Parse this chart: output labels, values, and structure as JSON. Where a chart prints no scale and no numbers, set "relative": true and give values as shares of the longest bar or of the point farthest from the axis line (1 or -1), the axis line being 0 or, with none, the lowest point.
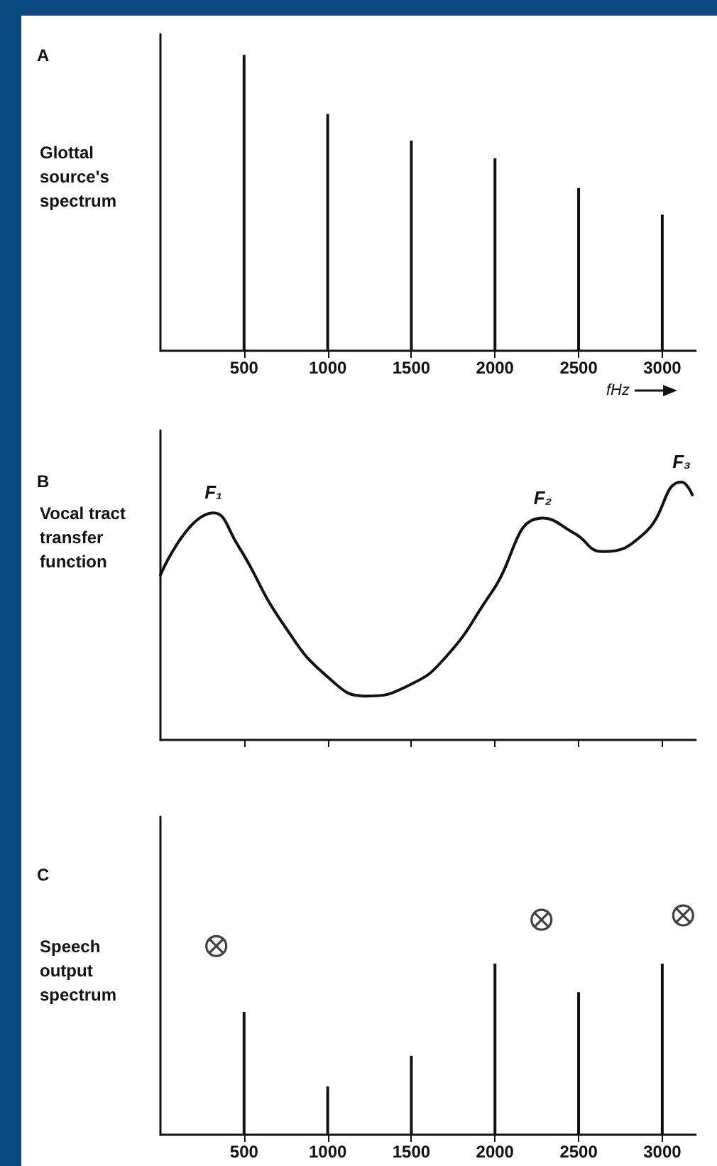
{
  "chart_data": [
    {
      "type": "bar",
      "annotations": [
        "A"
      ],
      "ylabel": "Glottal source's spectrum",
      "xlabel": "fHz",
      "relative": true,
      "color": "#111111",
      "xlim": [
        0,
        3200
      ],
      "xticks": [
        500,
        1000,
        1500,
        2000,
        2500,
        3000
      ],
      "tick_labels": "x",
      "x": [
        500,
        1000,
        1500,
        2000,
        2500,
        3000
      ],
      "values": [
        1,
        0.8,
        0.71,
        0.65,
        0.55,
        0.46
      ]
    },
    {
      "type": "line",
      "ylabel": "Vocal tract transfer function",
      "relative": true,
      "color": "#111111",
      "marker": "none",
      "line_style": "solid",
      "xlim": [
        0,
        3200
      ],
      "xticks": [
        {
          "value": 500,
          "label": null
        },
        {
          "value": 1000,
          "label": null
        },
        {
          "value": 1500,
          "label": null
        },
        {
          "value": 2000,
          "label": null
        },
        {
          "value": 2500,
          "label": null
        },
        {
          "value": 3000,
          "label": null
        }
      ],
      "tick_labels": false,
      "x": [
        0,
        317,
        458,
        733,
        1007,
        1231,
        1480,
        1704,
        1978,
        2286,
        2477,
        2643,
        2892,
        3116,
        3180
      ],
      "values": [
        0.64,
        0.88,
        0.76,
        0.45,
        0.24,
        0.17,
        0.21,
        0.32,
        0.57,
        0.86,
        0.8,
        0.73,
        0.8,
        1,
        0.95
      ],
      "annotations": [
        "B",
        {
          "text": "F₁",
          "x": 317,
          "y": 0.88
        },
        {
          "text": "F₂",
          "x": 2286,
          "y": 0.86
        },
        {
          "text": "F₃",
          "x": 3116,
          "y": 1
        }
      ]
    },
    {
      "type": "bar",
      "annotations": [
        "C"
      ],
      "ylabel": "Speech output spectrum",
      "relative": true,
      "marker": "cross",
      "xlim": [
        0,
        3200
      ],
      "xticks": [
        500,
        1000,
        1500,
        2000,
        2500,
        3000
      ],
      "tick_labels": "x",
      "series": [
        {
          "type": "bar",
          "color": "#111111",
          "x": [
            500,
            1000,
            1500,
            2000,
            2500,
            3000
          ],
          "values": [
            0.56,
            0.22,
            0.36,
            0.78,
            0.65,
            0.78
          ]
        },
        {
          "type": "scatter",
          "color": "#111111",
          "x": [
            334,
            2278,
            3125
          ],
          "values": [
            0.86,
            0.98,
            1
          ]
        }
      ]
    }
  ]
}
